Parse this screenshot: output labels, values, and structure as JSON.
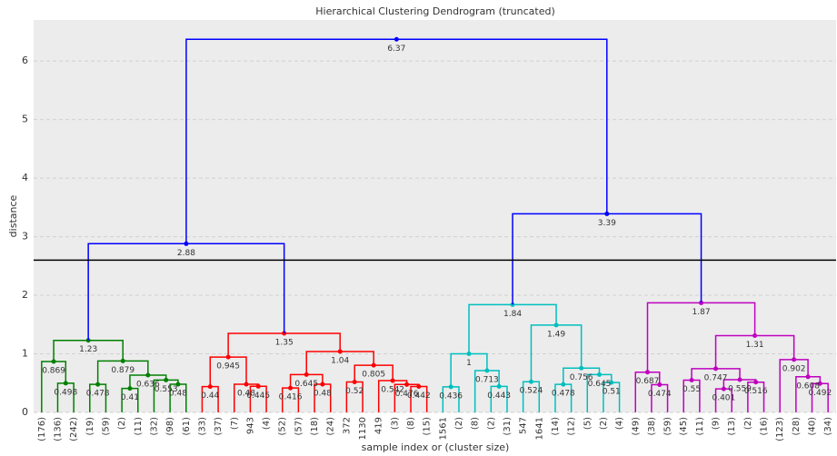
{
  "chart_data": {
    "type": "dendrogram",
    "title": "Hierarchical Clustering Dendrogram (truncated)",
    "xlabel": "sample index or (cluster size)",
    "ylabel": "distance",
    "categories": [
      "(176)",
      "(136)",
      "(242)",
      "(19)",
      "(59)",
      "(2)",
      "(11)",
      "(32)",
      "(98)",
      "(61)",
      "(33)",
      "(37)",
      "(7)",
      "943",
      "(4)",
      "(52)",
      "(57)",
      "(18)",
      "(24)",
      "372",
      "1130",
      "419",
      "(3)",
      "(8)",
      "(15)",
      "1561",
      "(2)",
      "(8)",
      "(2)",
      "(31)",
      "547",
      "1641",
      "(14)",
      "(12)",
      "(5)",
      "(2)",
      "(4)",
      "(49)",
      "(38)",
      "(59)",
      "(45)",
      "(11)",
      "(9)",
      "(13)",
      "(2)",
      "(16)",
      "(123)",
      "(28)",
      "(40)",
      "(34)"
    ],
    "merges": [
      {
        "left": 1,
        "right": 2,
        "height": 0.498,
        "color": "#008000"
      },
      {
        "left": 0,
        "right": 50,
        "height": 0.869,
        "color": "#008000"
      },
      {
        "left": 3,
        "right": 4,
        "height": 0.478,
        "color": "#008000"
      },
      {
        "left": 5,
        "right": 6,
        "height": 0.41,
        "color": "#008000"
      },
      {
        "left": 8,
        "right": 9,
        "height": 0.48,
        "color": "#008000"
      },
      {
        "left": 7,
        "right": 54,
        "height": 0.553,
        "color": "#008000"
      },
      {
        "left": 53,
        "right": 55,
        "height": 0.636,
        "color": "#008000"
      },
      {
        "left": 52,
        "right": 56,
        "height": 0.879,
        "color": "#008000"
      },
      {
        "left": 51,
        "right": 57,
        "height": 1.23,
        "color": "#008000"
      },
      {
        "left": 10,
        "right": 11,
        "height": 0.44,
        "color": "#ff0000"
      },
      {
        "left": 13,
        "right": 14,
        "height": 0.445,
        "color": "#ff0000"
      },
      {
        "left": 12,
        "right": 60,
        "height": 0.48,
        "color": "#ff0000"
      },
      {
        "left": 59,
        "right": 61,
        "height": 0.945,
        "color": "#ff0000"
      },
      {
        "left": 15,
        "right": 16,
        "height": 0.416,
        "color": "#ff0000"
      },
      {
        "left": 17,
        "right": 18,
        "height": 0.48,
        "color": "#ff0000"
      },
      {
        "left": 63,
        "right": 64,
        "height": 0.645,
        "color": "#ff0000"
      },
      {
        "left": 19,
        "right": 20,
        "height": 0.52,
        "color": "#ff0000"
      },
      {
        "left": 23,
        "right": 24,
        "height": 0.442,
        "color": "#ff0000"
      },
      {
        "left": 22,
        "right": 67,
        "height": 0.476,
        "color": "#ff0000"
      },
      {
        "left": 21,
        "right": 68,
        "height": 0.542,
        "color": "#ff0000"
      },
      {
        "left": 66,
        "right": 69,
        "height": 0.805,
        "color": "#ff0000"
      },
      {
        "left": 65,
        "right": 70,
        "height": 1.04,
        "color": "#ff0000"
      },
      {
        "left": 62,
        "right": 71,
        "height": 1.35,
        "color": "#ff0000"
      },
      {
        "left": 58,
        "right": 72,
        "height": 2.88,
        "color": "#0000ff"
      },
      {
        "left": 25,
        "right": 26,
        "height": 0.436,
        "color": "#00bfbf"
      },
      {
        "left": 28,
        "right": 29,
        "height": 0.443,
        "color": "#00bfbf"
      },
      {
        "left": 27,
        "right": 75,
        "height": 0.713,
        "color": "#00bfbf"
      },
      {
        "left": 74,
        "right": 76,
        "height": 1,
        "color": "#00bfbf"
      },
      {
        "left": 30,
        "right": 31,
        "height": 0.524,
        "color": "#00bfbf"
      },
      {
        "left": 32,
        "right": 33,
        "height": 0.478,
        "color": "#00bfbf"
      },
      {
        "left": 35,
        "right": 36,
        "height": 0.51,
        "color": "#00bfbf"
      },
      {
        "left": 34,
        "right": 80,
        "height": 0.645,
        "color": "#00bfbf"
      },
      {
        "left": 79,
        "right": 81,
        "height": 0.756,
        "color": "#00bfbf"
      },
      {
        "left": 78,
        "right": 82,
        "height": 1.49,
        "color": "#00bfbf"
      },
      {
        "left": 77,
        "right": 83,
        "height": 1.84,
        "color": "#00bfbf"
      },
      {
        "left": 38,
        "right": 39,
        "height": 0.474,
        "color": "#bf00bf"
      },
      {
        "left": 37,
        "right": 85,
        "height": 0.687,
        "color": "#bf00bf"
      },
      {
        "left": 40,
        "right": 41,
        "height": 0.55,
        "color": "#bf00bf"
      },
      {
        "left": 42,
        "right": 43,
        "height": 0.401,
        "color": "#bf00bf"
      },
      {
        "left": 44,
        "right": 45,
        "height": 0.516,
        "color": "#bf00bf"
      },
      {
        "left": 88,
        "right": 89,
        "height": 0.559,
        "color": "#bf00bf"
      },
      {
        "left": 87,
        "right": 90,
        "height": 0.747,
        "color": "#bf00bf"
      },
      {
        "left": 48,
        "right": 49,
        "height": 0.492,
        "color": "#bf00bf"
      },
      {
        "left": 47,
        "right": 92,
        "height": 0.608,
        "color": "#bf00bf"
      },
      {
        "left": 46,
        "right": 93,
        "height": 0.902,
        "color": "#bf00bf"
      },
      {
        "left": 91,
        "right": 94,
        "height": 1.31,
        "color": "#bf00bf"
      },
      {
        "left": 86,
        "right": 95,
        "height": 1.87,
        "color": "#bf00bf"
      },
      {
        "left": 84,
        "right": 96,
        "height": 3.39,
        "color": "#0000ff"
      },
      {
        "left": 73,
        "right": 97,
        "height": 6.37,
        "color": "#0000ff"
      }
    ],
    "hline": 2.6,
    "ylim": [
      0,
      6.7
    ],
    "yticks": [
      0,
      1,
      2,
      3,
      4,
      5,
      6
    ],
    "grid": true
  }
}
